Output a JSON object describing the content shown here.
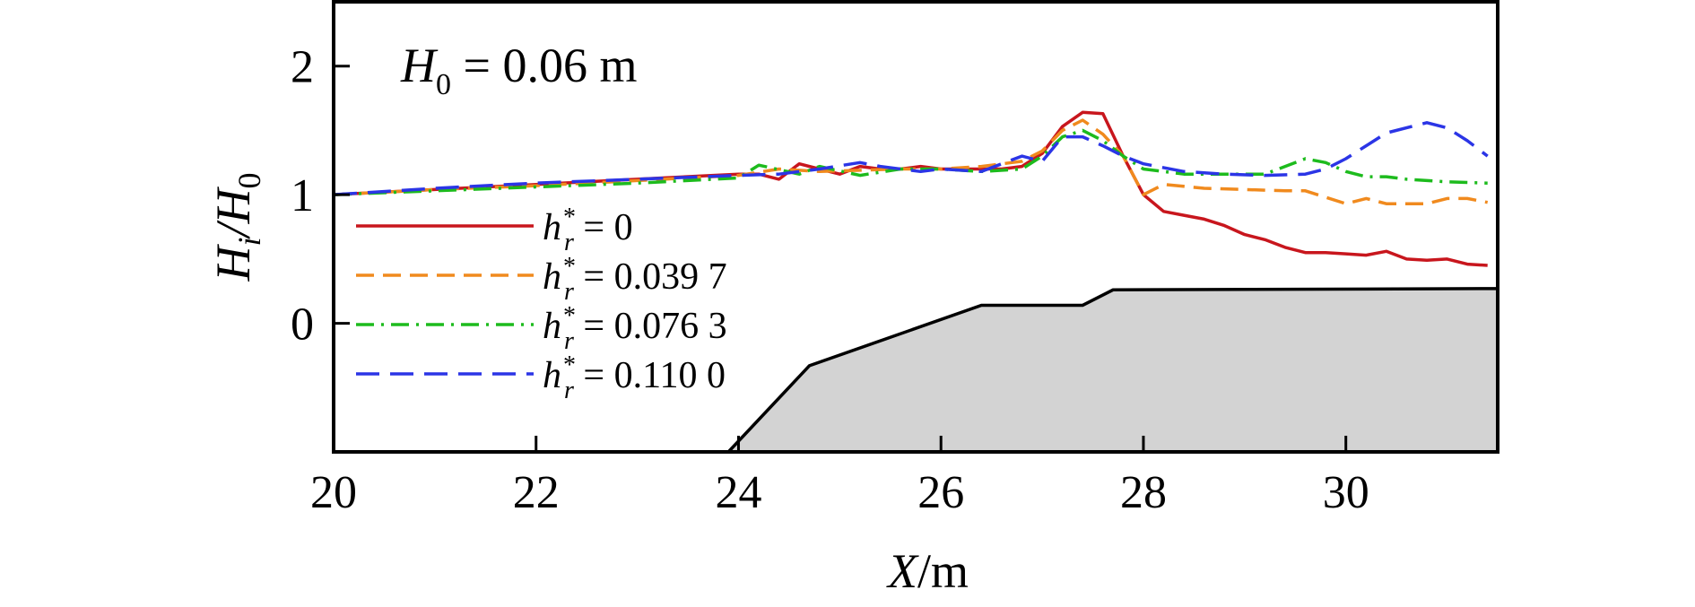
{
  "chart_data": {
    "type": "line",
    "title": "",
    "annotation": {
      "main": "H",
      "sub": "0",
      "rest": " = 0.06 m"
    },
    "xlabel": {
      "italic": "X",
      "rest": "/m"
    },
    "ylabel": {
      "p1": "H",
      "p1_sub": "i",
      "p2": "/H",
      "p2_sub": "0"
    },
    "xlim": [
      20,
      31.5
    ],
    "ylim": [
      -1.0,
      2.5
    ],
    "xticks": [
      20,
      22,
      24,
      26,
      28,
      30
    ],
    "yticks": [
      0,
      1,
      2
    ],
    "grid": false,
    "legend_position": "left",
    "legend_prefix": {
      "main": "h",
      "sub": "r",
      "sup": "*"
    },
    "series": [
      {
        "name": " = 0",
        "color": "#c8161d",
        "dash": "solid",
        "x": [
          20.0,
          21.0,
          22.0,
          23.0,
          24.0,
          24.2,
          24.4,
          24.6,
          24.8,
          25.0,
          25.2,
          25.4,
          25.6,
          25.8,
          26.0,
          26.2,
          26.4,
          26.6,
          26.8,
          27.0,
          27.2,
          27.4,
          27.6,
          27.8,
          28.0,
          28.2,
          28.4,
          28.6,
          28.8,
          29.0,
          29.2,
          29.4,
          29.6,
          29.8,
          30.0,
          30.2,
          30.4,
          30.6,
          30.8,
          31.0,
          31.2,
          31.4
        ],
        "y": [
          1.0,
          1.04,
          1.08,
          1.12,
          1.16,
          1.16,
          1.12,
          1.24,
          1.2,
          1.16,
          1.22,
          1.2,
          1.2,
          1.22,
          1.2,
          1.2,
          1.2,
          1.2,
          1.22,
          1.32,
          1.53,
          1.64,
          1.63,
          1.3,
          1.0,
          0.87,
          0.84,
          0.81,
          0.76,
          0.69,
          0.65,
          0.59,
          0.55,
          0.55,
          0.54,
          0.53,
          0.56,
          0.5,
          0.49,
          0.5,
          0.46,
          0.45
        ]
      },
      {
        "name": " = 0.039 7",
        "color": "#f08a1e",
        "dash": "20,10",
        "x": [
          20.0,
          21.0,
          22.0,
          23.0,
          24.0,
          24.4,
          24.8,
          25.2,
          25.6,
          26.0,
          26.4,
          26.8,
          27.0,
          27.2,
          27.4,
          27.6,
          27.8,
          28.0,
          28.2,
          28.6,
          29.0,
          29.4,
          29.6,
          29.8,
          30.0,
          30.2,
          30.4,
          30.8,
          31.0,
          31.2,
          31.4
        ],
        "y": [
          1.0,
          1.04,
          1.07,
          1.11,
          1.15,
          1.2,
          1.18,
          1.19,
          1.2,
          1.2,
          1.22,
          1.26,
          1.34,
          1.5,
          1.58,
          1.47,
          1.3,
          1.0,
          1.08,
          1.05,
          1.04,
          1.03,
          1.03,
          0.98,
          0.93,
          0.97,
          0.93,
          0.93,
          0.97,
          0.97,
          0.94
        ]
      },
      {
        "name": " = 0.076 3",
        "color": "#1dbb1d",
        "dash": "20,8,3,8",
        "x": [
          20.0,
          21.0,
          22.0,
          23.0,
          24.0,
          24.2,
          24.6,
          24.8,
          25.2,
          25.6,
          26.0,
          26.4,
          26.8,
          27.0,
          27.2,
          27.4,
          27.6,
          27.8,
          28.0,
          28.4,
          28.8,
          29.2,
          29.4,
          29.6,
          29.8,
          30.0,
          30.2,
          30.4,
          30.6,
          31.0,
          31.4
        ],
        "y": [
          1.0,
          1.03,
          1.06,
          1.09,
          1.13,
          1.23,
          1.16,
          1.22,
          1.15,
          1.2,
          1.2,
          1.18,
          1.2,
          1.3,
          1.45,
          1.5,
          1.42,
          1.3,
          1.2,
          1.16,
          1.16,
          1.16,
          1.22,
          1.28,
          1.25,
          1.18,
          1.14,
          1.14,
          1.12,
          1.1,
          1.09
        ]
      },
      {
        "name": " = 0.110 0",
        "color": "#2b35e6",
        "dash": "26,12",
        "x": [
          20.0,
          21.0,
          22.0,
          23.0,
          24.0,
          24.4,
          24.8,
          25.2,
          25.4,
          25.8,
          26.0,
          26.4,
          26.8,
          27.0,
          27.2,
          27.4,
          27.6,
          27.8,
          28.0,
          28.4,
          28.8,
          29.2,
          29.6,
          29.8,
          30.0,
          30.2,
          30.4,
          30.8,
          31.0,
          31.2,
          31.4
        ],
        "y": [
          1.0,
          1.05,
          1.09,
          1.12,
          1.15,
          1.16,
          1.2,
          1.25,
          1.22,
          1.18,
          1.2,
          1.18,
          1.3,
          1.26,
          1.45,
          1.45,
          1.38,
          1.3,
          1.24,
          1.18,
          1.16,
          1.15,
          1.16,
          1.2,
          1.28,
          1.38,
          1.48,
          1.56,
          1.52,
          1.42,
          1.3
        ]
      }
    ],
    "bathymetry": {
      "color": "#d3d3d3",
      "x": [
        23.9,
        24.7,
        26.4,
        27.4,
        27.7,
        31.5
      ],
      "y": [
        -1.0,
        -0.33,
        0.14,
        0.14,
        0.26,
        0.27
      ]
    }
  }
}
